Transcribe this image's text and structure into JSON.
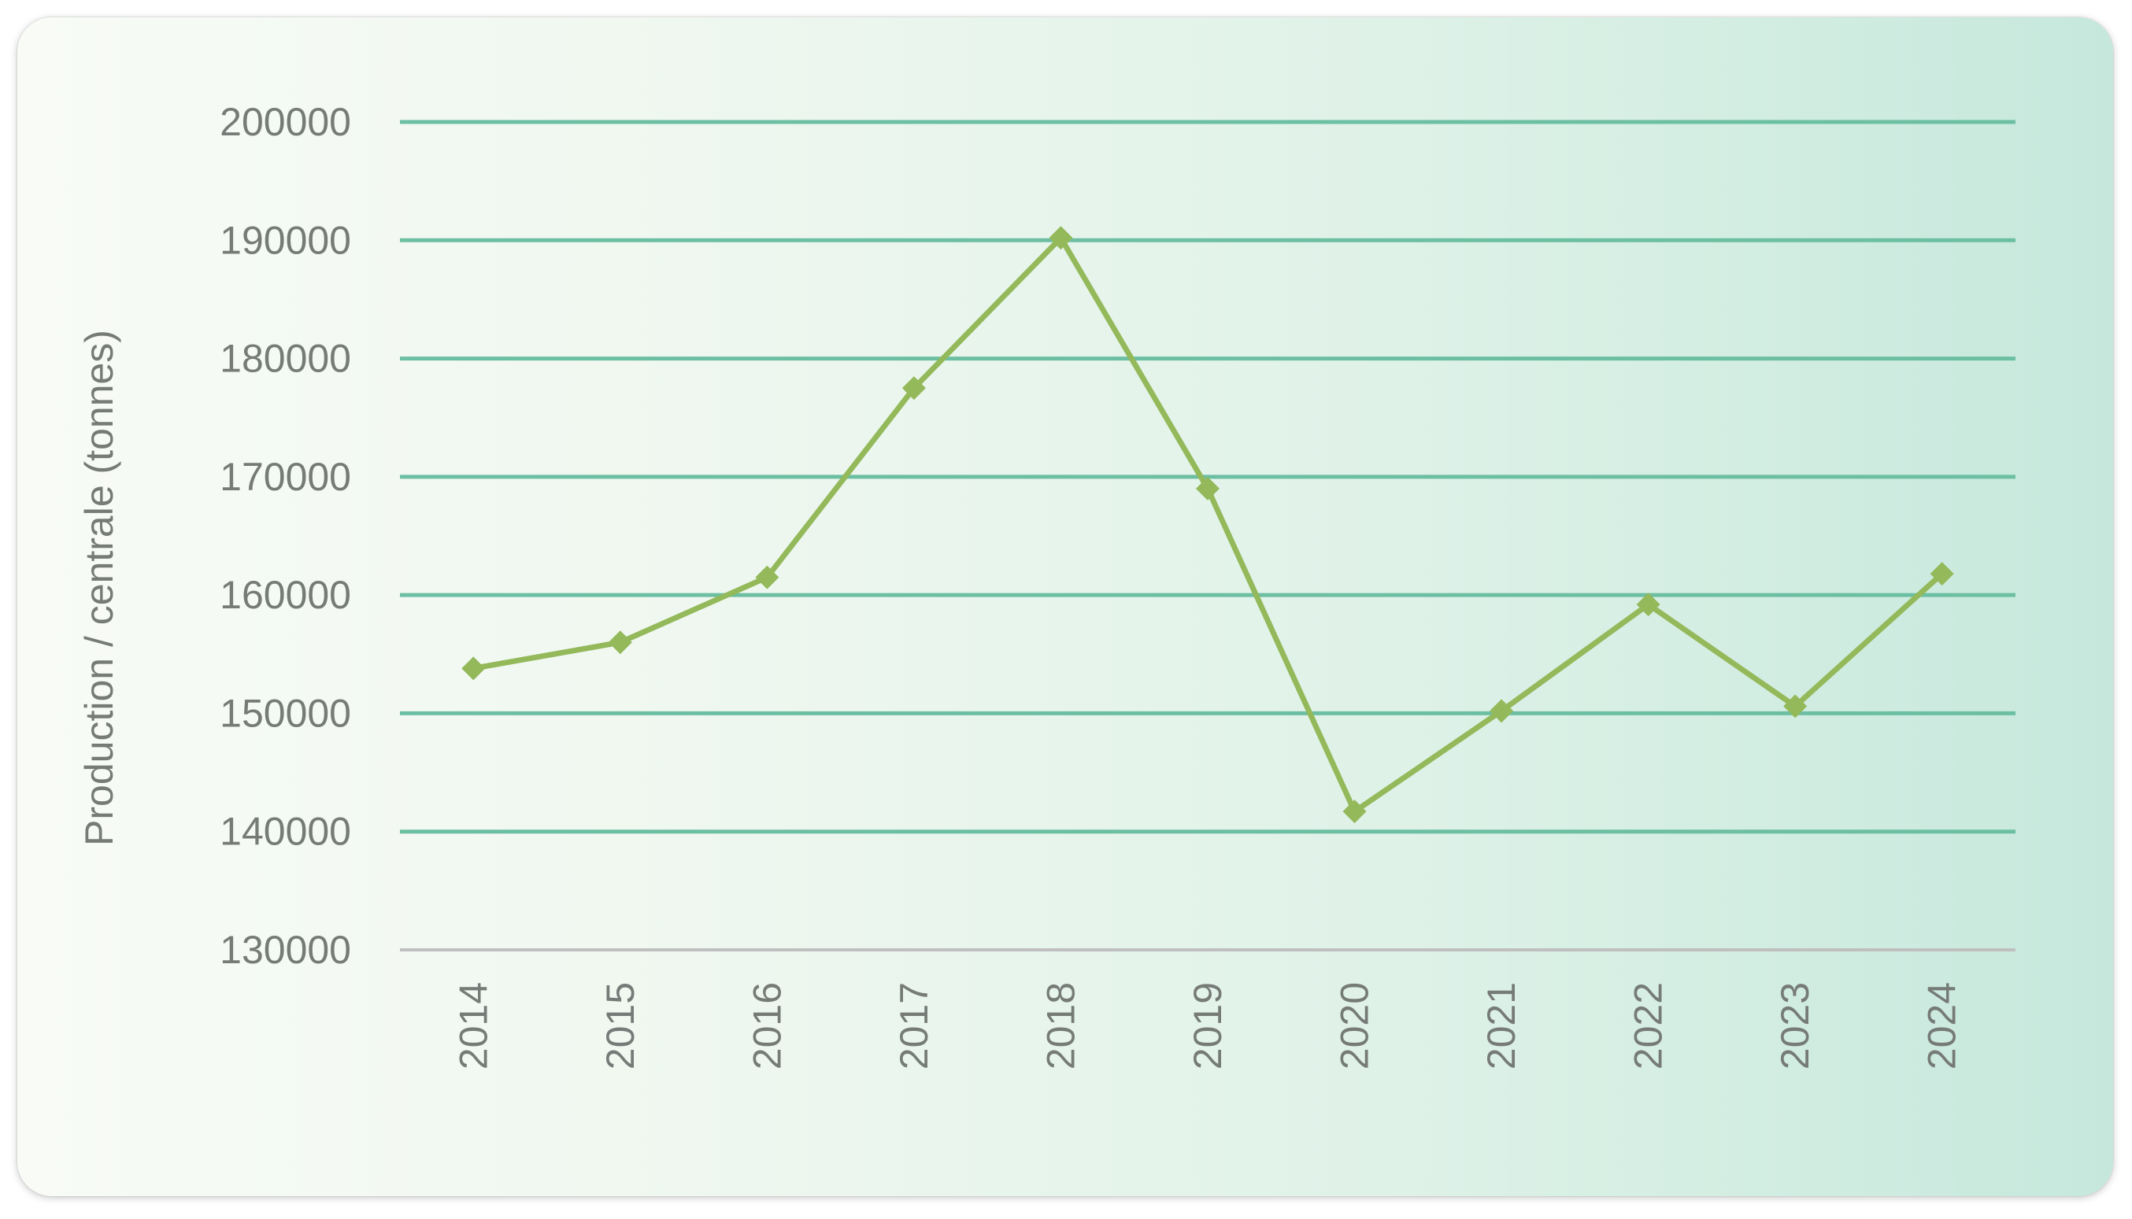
{
  "chart_data": {
    "type": "line",
    "title": "",
    "xlabel": "",
    "ylabel": "Production / centrale (tonnes)",
    "categories": [
      "2014",
      "2015",
      "2016",
      "2017",
      "2018",
      "2019",
      "2020",
      "2021",
      "2022",
      "2023",
      "2024"
    ],
    "series": [
      {
        "values": [
          153800,
          156000,
          161500,
          177500,
          190200,
          169000,
          141700,
          150200,
          159200,
          150600,
          161800
        ],
        "color": "#93b95a",
        "marker": "diamond"
      }
    ],
    "ylim": [
      130000,
      200000
    ],
    "yticks": [
      "130000",
      "140000",
      "150000",
      "160000",
      "170000",
      "180000",
      "190000",
      "200000"
    ],
    "grid": true,
    "grid_color": "#6cbfa2",
    "axis_color": "#bfbfbf",
    "legend": "none"
  }
}
